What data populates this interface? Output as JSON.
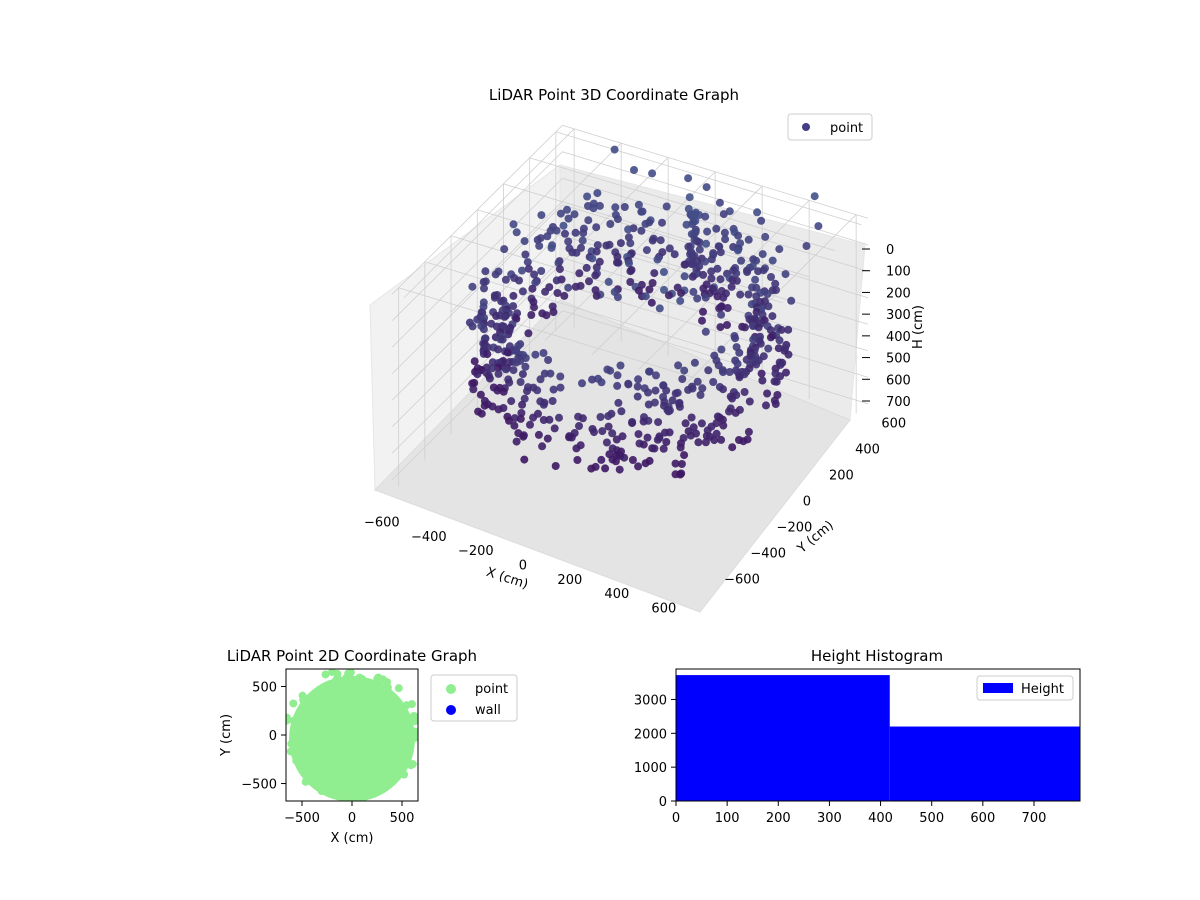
{
  "chart_data": [
    {
      "type": "scatter",
      "projection": "3d",
      "title": "LiDAR Point 3D Coordinate Graph",
      "xlabel": "X (cm)",
      "ylabel": "Y (cm)",
      "zlabel": "H (cm)",
      "x_ticks": [
        "−600",
        "−400",
        "−200",
        "0",
        "200",
        "400",
        "600"
      ],
      "y_ticks": [
        "−600",
        "−400",
        "−200",
        "0",
        "200",
        "400",
        "600"
      ],
      "z_ticks": [
        "0",
        "100",
        "200",
        "300",
        "400",
        "500",
        "600",
        "700"
      ],
      "xlim": [
        -650,
        650
      ],
      "ylim": [
        -650,
        650
      ],
      "zlim": [
        0,
        750
      ],
      "z_inverted": true,
      "grid": true,
      "legend": {
        "placement": "upper-right",
        "entries": [
          {
            "label": "point",
            "color": "#433e85"
          }
        ]
      },
      "colormap": "viridis",
      "series": [
        {
          "name": "point",
          "description_of_shape": "bowl of points: dense ring wall at radius ~550 cm from height ~100-450 cm, scattered ceiling points near 0-150 cm, a vertical column near x=0,y=400",
          "sample_points": [
            {
              "x": -560,
              "y": 200,
              "h": 420
            },
            {
              "x": -400,
              "y": 430,
              "h": 300
            },
            {
              "x": 0,
              "y": 560,
              "h": 250
            },
            {
              "x": 400,
              "y": 430,
              "h": 300
            },
            {
              "x": 560,
              "y": 100,
              "h": 350
            },
            {
              "x": 0,
              "y": -560,
              "h": 420
            },
            {
              "x": -300,
              "y": -470,
              "h": 450
            },
            {
              "x": 300,
              "y": -470,
              "h": 450
            },
            {
              "x": 0,
              "y": 400,
              "h": 50
            },
            {
              "x": 50,
              "y": 450,
              "h": 20
            }
          ]
        }
      ]
    },
    {
      "type": "scatter",
      "title": "LiDAR Point 2D Coordinate Graph",
      "xlabel": "X (cm)",
      "ylabel": "Y (cm)",
      "x_ticks": [
        "−500",
        "0",
        "500"
      ],
      "y_ticks": [
        "−500",
        "0",
        "500"
      ],
      "xlim": [
        -660,
        660
      ],
      "ylim": [
        -680,
        680
      ],
      "legend": {
        "placement": "outside-right",
        "entries": [
          {
            "label": "point",
            "color": "#90ee90"
          },
          {
            "label": "wall",
            "color": "#0000ff"
          }
        ]
      },
      "series": [
        {
          "name": "point",
          "color": "#90ee90",
          "shape": "filled disc of radius ~620 cm centered at origin"
        },
        {
          "name": "wall",
          "color": "#0000ff",
          "values": []
        }
      ]
    },
    {
      "type": "bar",
      "subtype": "histogram",
      "title": "Height Histogram",
      "x_ticks": [
        "0",
        "100",
        "200",
        "300",
        "400",
        "500",
        "600",
        "700"
      ],
      "y_ticks": [
        "0",
        "1000",
        "2000",
        "3000"
      ],
      "xlim": [
        0,
        790
      ],
      "ylim": [
        0,
        3900
      ],
      "legend": {
        "placement": "upper-right",
        "entries": [
          {
            "label": "Height",
            "color": "#0000ff"
          }
        ]
      },
      "bins": [
        {
          "from": 0,
          "to": 418,
          "count": 3720
        },
        {
          "from": 418,
          "to": 790,
          "count": 2200
        }
      ]
    }
  ]
}
